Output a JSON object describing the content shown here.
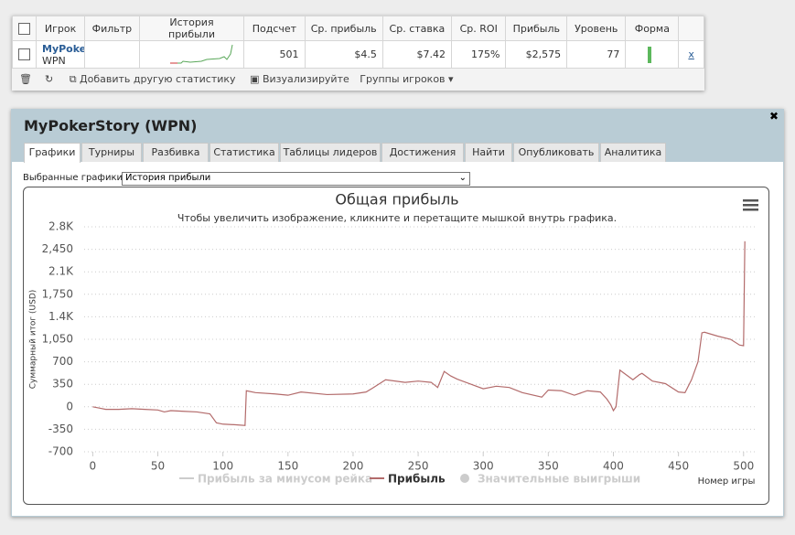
{
  "table": {
    "headers": [
      "Игрок",
      "Фильтр",
      "История прибыли",
      "Подсчет",
      "Ср. прибыль",
      "Ср. ставка",
      "Ср. ROI",
      "Прибыль",
      "Уровень",
      "Форма"
    ],
    "row": {
      "player": "MyPoker",
      "site": "WPN",
      "count": "501",
      "avg_profit": "$4.5",
      "avg_stake": "$7.42",
      "avg_roi": "175%",
      "profit": "$2,575",
      "level": "77",
      "remove": "x"
    }
  },
  "toolbar": [
    "Добавить другую статистику",
    "Визуализируйте",
    "Группы игроков"
  ],
  "window": {
    "title": "MyPokerStory (WPN)",
    "tabs": [
      "Графики",
      "Турниры",
      "Разбивка",
      "Статистика",
      "Таблицы лидеров",
      "Достижения",
      "Найти",
      "Опубликовать",
      "Аналитика"
    ],
    "select_label": "Выбранные графики:",
    "select_value": "История прибыли"
  },
  "chart_data": {
    "type": "line",
    "title": "Общая прибыль",
    "subtitle": "Чтобы увеличить изображение, кликните и перетащите мышкой внутрь графика.",
    "x_label": "Номер игры",
    "y_label": "Суммарный итог (USD)",
    "xlim": [
      -8,
      510
    ],
    "ylim": [
      -700,
      2800
    ],
    "xticks": [
      0,
      50,
      100,
      150,
      200,
      250,
      300,
      350,
      400,
      450,
      500
    ],
    "yticks": [
      {
        "value": 2800,
        "label": "2.8K"
      },
      {
        "value": 2450,
        "label": "2,450"
      },
      {
        "value": 2100,
        "label": "2.1K"
      },
      {
        "value": 1750,
        "label": "1,750"
      },
      {
        "value": 1400,
        "label": "1.4K"
      },
      {
        "value": 1050,
        "label": "1,050"
      },
      700,
      350,
      0,
      -350,
      -700
    ],
    "grid": true,
    "x": [
      0,
      5,
      10,
      20,
      30,
      40,
      50,
      55,
      60,
      70,
      80,
      90,
      95,
      100,
      110,
      117,
      118,
      125,
      140,
      150,
      160,
      180,
      200,
      210,
      215,
      225,
      240,
      250,
      260,
      265,
      270,
      275,
      280,
      300,
      310,
      320,
      330,
      345,
      350,
      360,
      370,
      380,
      390,
      395,
      398,
      400,
      402,
      405,
      415,
      420,
      422,
      430,
      440,
      450,
      455,
      460,
      465,
      468,
      470,
      480,
      490,
      497,
      500,
      501
    ],
    "series": [
      {
        "name": "Прибыль за минусом рейка",
        "color": "#cccccc",
        "hidden": true
      },
      {
        "name": "Прибыль",
        "color": "#b36b6b",
        "values": [
          0,
          -20,
          -40,
          -40,
          -30,
          -40,
          -50,
          -80,
          -60,
          -70,
          -80,
          -110,
          -250,
          -270,
          -280,
          -290,
          250,
          220,
          200,
          180,
          230,
          190,
          200,
          230,
          290,
          420,
          380,
          400,
          380,
          300,
          550,
          480,
          430,
          280,
          320,
          300,
          220,
          150,
          260,
          250,
          180,
          250,
          230,
          120,
          30,
          -60,
          0,
          570,
          420,
          500,
          520,
          400,
          360,
          230,
          220,
          420,
          700,
          1150,
          1160,
          1100,
          1050,
          960,
          950,
          2575
        ]
      },
      {
        "name": "Значительные выигрыши",
        "color": "#cccccc",
        "hidden": true,
        "type": "scatter"
      }
    ]
  }
}
